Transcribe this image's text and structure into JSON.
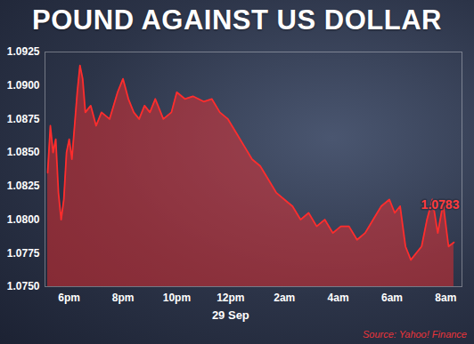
{
  "chart_data": {
    "type": "line",
    "title": "POUND AGAINST US DOLLAR",
    "caption": "Source: Yahoo! Finance",
    "color": "#ff2d2d",
    "grid": false,
    "x": [
      -0.8,
      -0.7,
      -0.6,
      -0.5,
      -0.4,
      -0.3,
      -0.2,
      -0.1,
      0,
      0.1,
      0.2,
      0.3,
      0.4,
      0.5,
      0.6,
      0.8,
      1.0,
      1.2,
      1.5,
      1.8,
      2.0,
      2.2,
      2.4,
      2.6,
      2.8,
      3.0,
      3.2,
      3.5,
      3.8,
      4.0,
      4.3,
      4.6,
      5.0,
      5.3,
      5.6,
      5.9,
      6.2,
      6.5,
      6.8,
      7.1,
      7.4,
      7.7,
      8.0,
      8.3,
      8.6,
      8.9,
      9.2,
      9.5,
      9.8,
      10.1,
      10.4,
      10.7,
      11.0,
      11.3,
      11.6,
      11.9,
      12.1,
      12.3,
      12.5,
      12.7,
      12.9,
      13.1,
      13.3,
      13.5,
      13.7,
      13.9,
      14.1,
      14.3
    ],
    "values": [
      1.0835,
      1.087,
      1.085,
      1.086,
      1.082,
      1.08,
      1.0815,
      1.085,
      1.086,
      1.0845,
      1.087,
      1.0895,
      1.0915,
      1.0905,
      1.088,
      1.0885,
      1.087,
      1.088,
      1.0875,
      1.0895,
      1.0905,
      1.089,
      1.088,
      1.0875,
      1.0885,
      1.088,
      1.089,
      1.0875,
      1.088,
      1.0895,
      1.089,
      1.0892,
      1.0888,
      1.089,
      1.088,
      1.0875,
      1.0865,
      1.0855,
      1.0845,
      1.084,
      1.083,
      1.082,
      1.0815,
      1.081,
      1.08,
      1.0805,
      1.0795,
      1.08,
      1.079,
      1.0795,
      1.0795,
      1.0785,
      1.079,
      1.08,
      1.081,
      1.0815,
      1.0805,
      1.081,
      1.078,
      1.077,
      1.0775,
      1.078,
      1.08,
      1.0815,
      1.079,
      1.0812,
      1.078,
      1.0783
    ],
    "xlim": [
      -0.9,
      14.6
    ],
    "xticks": [
      {
        "value": 0,
        "label": "6pm"
      },
      {
        "value": 2,
        "label": "8pm"
      },
      {
        "value": 4,
        "label": "10pm"
      },
      {
        "value": 6,
        "label": "12pm"
      },
      {
        "value": 8,
        "label": "2am"
      },
      {
        "value": 10,
        "label": "4am"
      },
      {
        "value": 12,
        "label": "6am"
      },
      {
        "value": 14,
        "label": "8am"
      }
    ],
    "ylim": [
      1.075,
      1.0925
    ],
    "yticks": [
      {
        "value": 1.075,
        "label": "1.0750"
      },
      1.0775,
      {
        "value": 1.08,
        "label": "1.0800"
      },
      1.0825,
      {
        "value": 1.085,
        "label": "1.0850"
      },
      1.0875,
      {
        "value": 1.09,
        "label": "1.0900"
      },
      1.0925
    ],
    "annotations": [
      {
        "x": 6,
        "text": "29 Sep"
      },
      {
        "x": 14.3,
        "y": 1.0783,
        "text": "1.0783"
      }
    ]
  }
}
